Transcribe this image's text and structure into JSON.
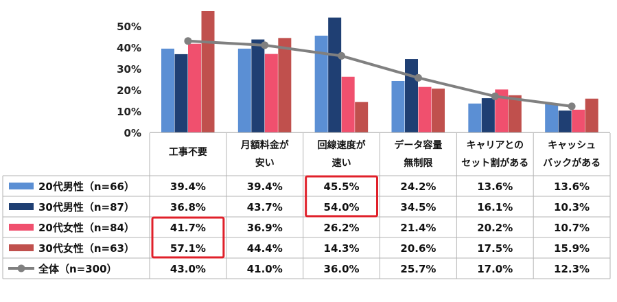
{
  "chart_data": {
    "type": "bar",
    "categories": [
      [
        "工事不要"
      ],
      [
        "月額料金が",
        "安い"
      ],
      [
        "回線速度が",
        "速い"
      ],
      [
        "データ容量",
        "無制限"
      ],
      [
        "キャリアとの",
        "セット割がある"
      ],
      [
        "キャッシュ",
        "バックがある"
      ]
    ],
    "series": [
      {
        "name": "20代男性（n=66）",
        "color": "#5b8fd4",
        "values": [
          39.4,
          39.4,
          45.5,
          24.2,
          13.6,
          13.6
        ]
      },
      {
        "name": "30代男性（n=87）",
        "color": "#1f3f73",
        "values": [
          36.8,
          43.7,
          54.0,
          34.5,
          16.1,
          10.3
        ]
      },
      {
        "name": "20代女性（n=84）",
        "color": "#f0506e",
        "values": [
          41.7,
          36.9,
          26.2,
          21.4,
          20.2,
          10.7
        ]
      },
      {
        "name": "30代女性（n=63）",
        "color": "#c0504d",
        "values": [
          57.1,
          44.4,
          14.3,
          20.6,
          17.5,
          15.9
        ]
      }
    ],
    "line_series": {
      "name": "全体（n=300）",
      "color": "#808080",
      "values": [
        43.0,
        41.0,
        36.0,
        25.7,
        17.0,
        12.3
      ]
    },
    "y_ticks": [
      "0%",
      "10%",
      "20%",
      "30%",
      "40%",
      "50%"
    ],
    "ylim": [
      0,
      60
    ],
    "grid": false,
    "table": {
      "rows": [
        [
          "39.4%",
          "39.4%",
          "45.5%",
          "24.2%",
          "13.6%",
          "13.6%"
        ],
        [
          "36.8%",
          "43.7%",
          "54.0%",
          "34.5%",
          "16.1%",
          "10.3%"
        ],
        [
          "41.7%",
          "36.9%",
          "26.2%",
          "21.4%",
          "20.2%",
          "10.7%"
        ],
        [
          "57.1%",
          "44.4%",
          "14.3%",
          "20.6%",
          "17.5%",
          "15.9%"
        ],
        [
          "43.0%",
          "41.0%",
          "36.0%",
          "25.7%",
          "17.0%",
          "12.3%"
        ]
      ]
    },
    "highlights": [
      {
        "rows": [
          0,
          1
        ],
        "col": 2,
        "color": "#e0202a"
      },
      {
        "rows": [
          2,
          3
        ],
        "col": 0,
        "color": "#e0202a"
      }
    ]
  }
}
